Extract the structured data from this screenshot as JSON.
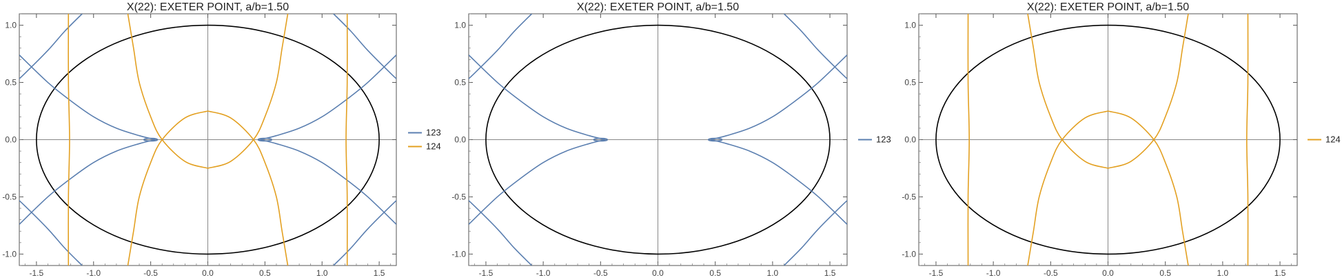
{
  "chart_data": [
    {
      "type": "line",
      "title": "X(22): EXETER POINT, a/b=1.50",
      "xlabel": "",
      "ylabel": "",
      "xlim": [
        -1.65,
        1.65
      ],
      "ylim": [
        -1.1,
        1.1
      ],
      "x_ticks": [
        "-1.5",
        "-1.0",
        "-0.5",
        "0.0",
        "0.5",
        "1.0",
        "1.5"
      ],
      "y_ticks": [
        "1.0",
        "0.5",
        "0.0",
        "-0.5",
        "-1.0"
      ],
      "grid": false,
      "legend_placement": "right",
      "ellipse": {
        "a": 1.5,
        "b": 1.0,
        "color": "#000000"
      },
      "series": [
        {
          "name": "123",
          "color": "#5B7FB0",
          "cusp": 0.46,
          "upper_right": [
            [
              0.46,
              0.0
            ],
            [
              0.6,
              0.035
            ],
            [
              0.8,
              0.1
            ],
            [
              1.0,
              0.2
            ],
            [
              1.2,
              0.34
            ],
            [
              1.4,
              0.5
            ],
            [
              1.65,
              0.74
            ]
          ],
          "outer_right": [
            [
              1.1,
              -1.1
            ],
            [
              1.25,
              -0.95
            ],
            [
              1.4,
              -0.78
            ],
            [
              1.6,
              -0.58
            ],
            [
              1.75,
              -0.44
            ]
          ]
        },
        {
          "name": "124",
          "color": "#E3A021",
          "inner_y": 0.25,
          "inner_x": 0.4,
          "inner_right": [
            [
              0.0,
              0.25
            ],
            [
              0.2,
              0.19
            ],
            [
              0.4,
              0.0
            ],
            [
              0.5,
              -0.2
            ],
            [
              0.6,
              -0.5
            ],
            [
              0.65,
              -0.8
            ],
            [
              0.7,
              -1.1
            ]
          ],
          "outer_x": 1.22,
          "outer_right": [
            [
              1.22,
              1.1
            ],
            [
              1.22,
              0.5
            ],
            [
              1.21,
              0.0
            ],
            [
              1.22,
              -0.5
            ],
            [
              1.22,
              -1.1
            ]
          ]
        }
      ]
    },
    {
      "type": "line",
      "title": "X(22): EXETER POINT, a/b=1.50",
      "xlabel": "",
      "ylabel": "",
      "xlim": [
        -1.65,
        1.65
      ],
      "ylim": [
        -1.1,
        1.1
      ],
      "x_ticks": [
        "-1.5",
        "-1.0",
        "-0.5",
        "0.0",
        "0.5",
        "1.0",
        "1.5"
      ],
      "y_ticks": [
        "1.0",
        "0.5",
        "0.0",
        "-0.5",
        "-1.0"
      ],
      "grid": false,
      "legend_placement": "right",
      "ellipse": {
        "a": 1.5,
        "b": 1.0,
        "color": "#000000"
      },
      "series": [
        {
          "name": "123",
          "color": "#5B7FB0",
          "cusp": 0.46,
          "upper_right": [
            [
              0.46,
              0.0
            ],
            [
              0.6,
              0.035
            ],
            [
              0.8,
              0.1
            ],
            [
              1.0,
              0.2
            ],
            [
              1.2,
              0.34
            ],
            [
              1.4,
              0.5
            ],
            [
              1.65,
              0.74
            ]
          ],
          "outer_right": [
            [
              1.1,
              -1.1
            ],
            [
              1.25,
              -0.95
            ],
            [
              1.4,
              -0.78
            ],
            [
              1.6,
              -0.58
            ],
            [
              1.75,
              -0.44
            ]
          ]
        }
      ]
    },
    {
      "type": "line",
      "title": "X(22): EXETER POINT, a/b=1.50",
      "xlabel": "",
      "ylabel": "",
      "xlim": [
        -1.65,
        1.65
      ],
      "ylim": [
        -1.1,
        1.1
      ],
      "x_ticks": [
        "-1.5",
        "-1.0",
        "-0.5",
        "0.0",
        "0.5",
        "1.0",
        "1.5"
      ],
      "y_ticks": [
        "1.0",
        "0.5",
        "0.0",
        "-0.5",
        "-1.0"
      ],
      "grid": false,
      "legend_placement": "right",
      "ellipse": {
        "a": 1.5,
        "b": 1.0,
        "color": "#000000"
      },
      "series": [
        {
          "name": "124",
          "color": "#E3A021",
          "inner_y": 0.25,
          "inner_x": 0.4,
          "inner_right": [
            [
              0.0,
              0.25
            ],
            [
              0.2,
              0.19
            ],
            [
              0.4,
              0.0
            ],
            [
              0.5,
              -0.2
            ],
            [
              0.6,
              -0.5
            ],
            [
              0.65,
              -0.8
            ],
            [
              0.7,
              -1.1
            ]
          ],
          "outer_x": 1.22,
          "outer_right": [
            [
              1.22,
              1.1
            ],
            [
              1.22,
              0.5
            ],
            [
              1.21,
              0.0
            ],
            [
              1.22,
              -0.5
            ],
            [
              1.22,
              -1.1
            ]
          ]
        }
      ]
    }
  ]
}
